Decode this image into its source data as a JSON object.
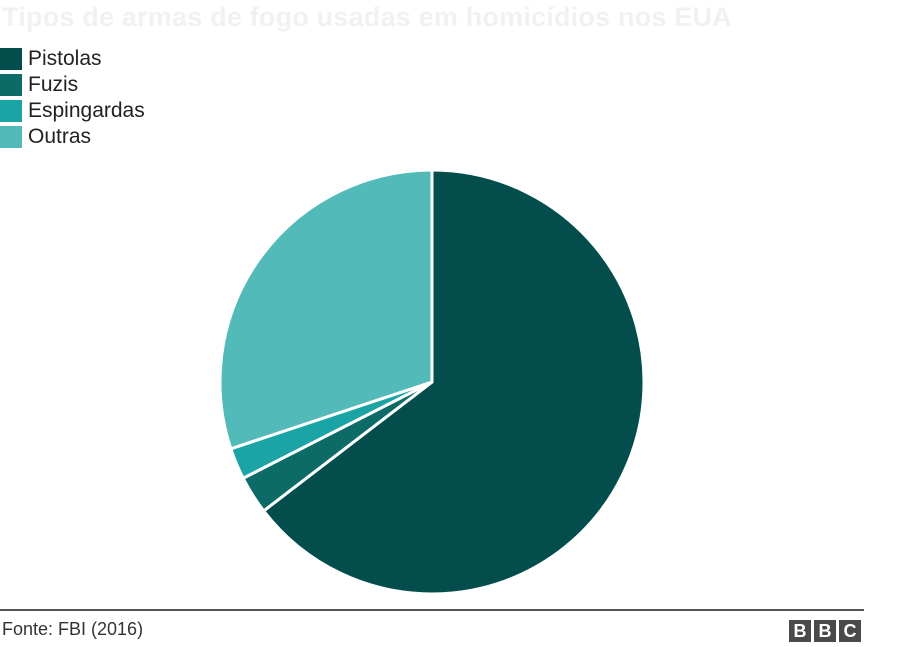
{
  "chart_data": {
    "type": "pie",
    "title": "Tipos de armas de fogo usadas em homicídios nos EUA",
    "categories": [
      "Pistolas",
      "Fuzis",
      "Espingardas",
      "Outras"
    ],
    "values": [
      64.6,
      2.9,
      2.4,
      30.1
    ],
    "colors": [
      "#034d4d",
      "#0c6a67",
      "#1aa4a5",
      "#53baba"
    ],
    "start_angle_deg": 0,
    "direction": "clockwise",
    "legend_position": "top-left"
  },
  "footer": {
    "source": "Fonte: FBI (2016)",
    "logo_letters": [
      "B",
      "B",
      "C"
    ],
    "logo_color": "#4a4a4a"
  }
}
